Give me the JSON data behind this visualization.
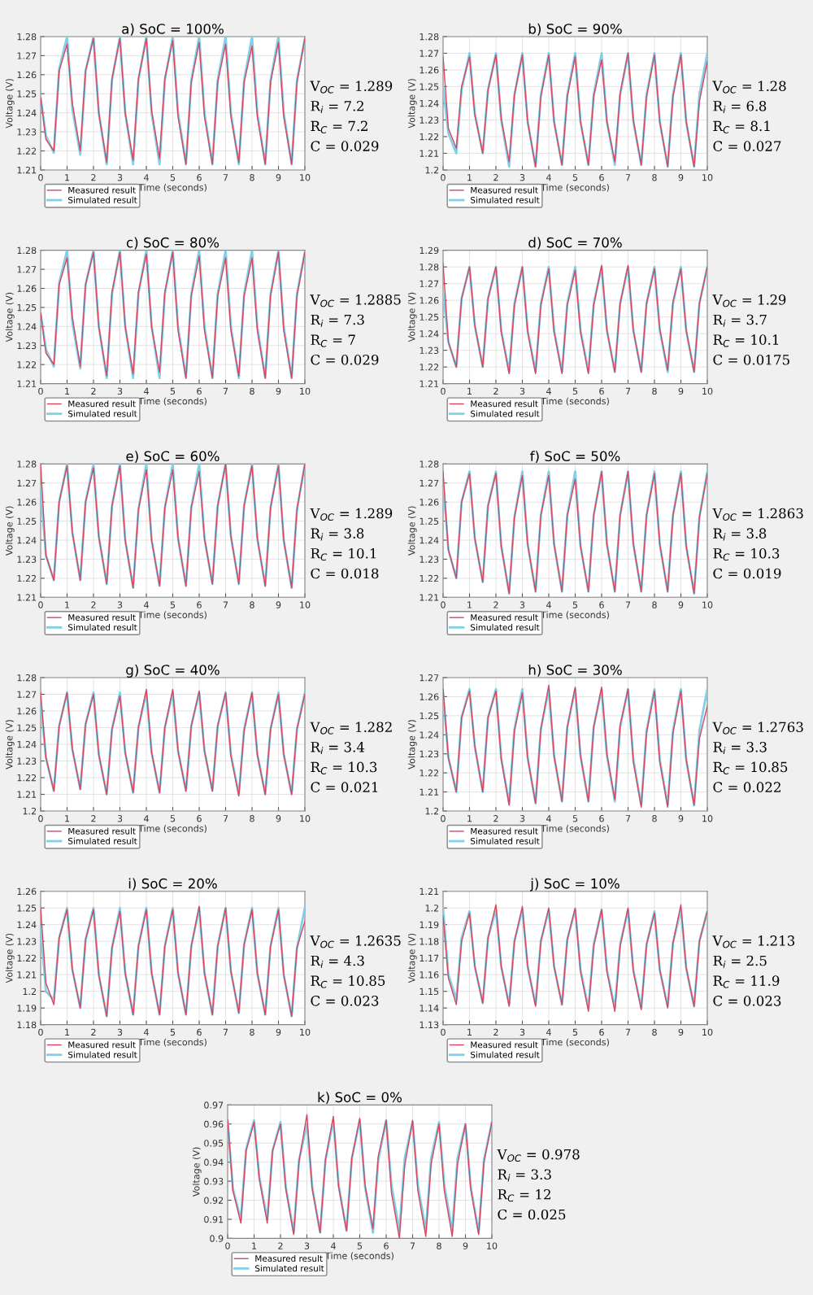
{
  "chart_data": [
    {
      "type": "line",
      "title": "a) SoC = 100%",
      "xlabel": "Time (seconds)",
      "ylabel": "Voltage (V)",
      "xlim": [
        0,
        10
      ],
      "xticks": [
        0,
        1,
        2,
        3,
        4,
        5,
        6,
        7,
        8,
        9,
        10
      ],
      "ylim": [
        1.21,
        1.28
      ],
      "yticks": [
        1.21,
        1.22,
        1.23,
        1.24,
        1.25,
        1.26,
        1.27,
        1.28
      ],
      "grid": true,
      "legend": "bottom left",
      "annotations": [
        "V$_{OC}$ = 1.289",
        "R$_{i}$ = 7.2",
        "R$_{C}$ = 7.2",
        "C = 0.029"
      ],
      "x": [
        0,
        0.2,
        0.5,
        0.7,
        1,
        1.2,
        1.5,
        1.7,
        2,
        2.2,
        2.5,
        2.7,
        3,
        3.2,
        3.5,
        3.7,
        4,
        4.2,
        4.5,
        4.7,
        5,
        5.2,
        5.5,
        5.7,
        6,
        6.2,
        6.5,
        6.7,
        7,
        7.2,
        7.5,
        7.7,
        8,
        8.2,
        8.5,
        8.7,
        9,
        9.2,
        9.5,
        9.7,
        10
      ],
      "series": [
        {
          "name": "Measured result",
          "color": "#d9455f",
          "values": [
            1.248,
            1.226,
            1.22,
            1.262,
            1.276,
            1.245,
            1.22,
            1.262,
            1.279,
            1.24,
            1.214,
            1.258,
            1.279,
            1.24,
            1.215,
            1.258,
            1.279,
            1.241,
            1.216,
            1.258,
            1.278,
            1.238,
            1.213,
            1.256,
            1.277,
            1.238,
            1.213,
            1.256,
            1.276,
            1.238,
            1.214,
            1.256,
            1.275,
            1.238,
            1.213,
            1.256,
            1.277,
            1.238,
            1.213,
            1.256,
            1.279
          ]
        },
        {
          "name": "Simulated result",
          "color": "#7fd0e8",
          "values": [
            1.248,
            1.228,
            1.219,
            1.263,
            1.28,
            1.242,
            1.218,
            1.262,
            1.28,
            1.24,
            1.213,
            1.257,
            1.28,
            1.24,
            1.213,
            1.257,
            1.28,
            1.24,
            1.213,
            1.257,
            1.28,
            1.24,
            1.213,
            1.257,
            1.28,
            1.24,
            1.213,
            1.257,
            1.28,
            1.24,
            1.213,
            1.257,
            1.28,
            1.24,
            1.213,
            1.257,
            1.28,
            1.24,
            1.213,
            1.257,
            1.279
          ]
        }
      ]
    },
    {
      "type": "line",
      "title": "b) SoC = 90%",
      "xlabel": "Time (seconds)",
      "ylabel": "Voltage (V)",
      "xlim": [
        0,
        10
      ],
      "xticks": [
        0,
        1,
        2,
        3,
        4,
        5,
        6,
        7,
        8,
        9,
        10
      ],
      "ylim": [
        1.2,
        1.28
      ],
      "yticks": [
        1.2,
        1.21,
        1.22,
        1.23,
        1.24,
        1.25,
        1.26,
        1.27,
        1.28
      ],
      "grid": true,
      "legend": "bottom left",
      "annotations": [
        "V$_{OC}$ = 1.28",
        "R$_{i}$ = 6.8",
        "R$_{C}$ = 8.1",
        "C = 0.027"
      ],
      "x": [
        0,
        0.2,
        0.5,
        0.7,
        1,
        1.2,
        1.5,
        1.7,
        2,
        2.2,
        2.5,
        2.7,
        3,
        3.2,
        3.5,
        3.7,
        4,
        4.2,
        4.5,
        4.7,
        5,
        5.2,
        5.5,
        5.7,
        6,
        6.2,
        6.5,
        6.7,
        7,
        7.2,
        7.5,
        7.7,
        8,
        8.2,
        8.5,
        8.7,
        9,
        9.2,
        9.5,
        9.7,
        10
      ],
      "series": [
        {
          "name": "Measured result",
          "color": "#d9455f",
          "values": [
            1.268,
            1.225,
            1.213,
            1.25,
            1.268,
            1.233,
            1.21,
            1.248,
            1.269,
            1.231,
            1.205,
            1.245,
            1.269,
            1.229,
            1.202,
            1.244,
            1.269,
            1.229,
            1.203,
            1.244,
            1.268,
            1.229,
            1.203,
            1.244,
            1.266,
            1.229,
            1.205,
            1.246,
            1.27,
            1.23,
            1.203,
            1.244,
            1.269,
            1.229,
            1.202,
            1.244,
            1.269,
            1.229,
            1.202,
            1.241,
            1.265
          ]
        },
        {
          "name": "Simulated result",
          "color": "#7fd0e8",
          "values": [
            1.25,
            1.222,
            1.21,
            1.248,
            1.27,
            1.234,
            1.21,
            1.248,
            1.27,
            1.23,
            1.202,
            1.245,
            1.27,
            1.229,
            1.202,
            1.245,
            1.27,
            1.229,
            1.203,
            1.245,
            1.27,
            1.229,
            1.203,
            1.245,
            1.27,
            1.229,
            1.203,
            1.245,
            1.27,
            1.229,
            1.203,
            1.245,
            1.27,
            1.229,
            1.202,
            1.245,
            1.27,
            1.229,
            1.202,
            1.245,
            1.27
          ]
        }
      ]
    },
    {
      "type": "line",
      "title": "c) SoC = 80%",
      "xlabel": "Time (seconds)",
      "ylabel": "Voltage (V)",
      "xlim": [
        0,
        10
      ],
      "xticks": [
        0,
        1,
        2,
        3,
        4,
        5,
        6,
        7,
        8,
        9,
        10
      ],
      "ylim": [
        1.21,
        1.28
      ],
      "yticks": [
        1.21,
        1.22,
        1.23,
        1.24,
        1.25,
        1.26,
        1.27,
        1.28
      ],
      "grid": true,
      "legend": "bottom left",
      "annotations": [
        "V$_{OC}$ = 1.2885",
        "R$_{i}$ = 7.3",
        "R$_{C}$ = 7",
        "C = 0.029"
      ],
      "x": [
        0,
        0.2,
        0.5,
        0.7,
        1,
        1.2,
        1.5,
        1.7,
        2,
        2.2,
        2.5,
        2.7,
        3,
        3.2,
        3.5,
        3.7,
        4,
        4.2,
        4.5,
        4.7,
        5,
        5.2,
        5.5,
        5.7,
        6,
        6.2,
        6.5,
        6.7,
        7,
        7.2,
        7.5,
        7.7,
        8,
        8.2,
        8.5,
        8.7,
        9,
        9.2,
        9.5,
        9.7,
        10
      ],
      "series": [
        {
          "name": "Measured result",
          "color": "#d9455f",
          "values": [
            1.247,
            1.226,
            1.22,
            1.262,
            1.276,
            1.245,
            1.219,
            1.262,
            1.279,
            1.24,
            1.214,
            1.258,
            1.279,
            1.24,
            1.215,
            1.258,
            1.278,
            1.24,
            1.216,
            1.258,
            1.279,
            1.238,
            1.213,
            1.256,
            1.277,
            1.238,
            1.213,
            1.256,
            1.276,
            1.238,
            1.214,
            1.256,
            1.276,
            1.238,
            1.213,
            1.256,
            1.279,
            1.238,
            1.213,
            1.256,
            1.279
          ]
        },
        {
          "name": "Simulated result",
          "color": "#7fd0e8",
          "values": [
            1.247,
            1.228,
            1.219,
            1.263,
            1.28,
            1.242,
            1.218,
            1.262,
            1.28,
            1.24,
            1.213,
            1.257,
            1.28,
            1.24,
            1.213,
            1.257,
            1.28,
            1.24,
            1.213,
            1.257,
            1.28,
            1.24,
            1.213,
            1.257,
            1.28,
            1.24,
            1.213,
            1.257,
            1.28,
            1.24,
            1.213,
            1.257,
            1.28,
            1.24,
            1.213,
            1.257,
            1.28,
            1.24,
            1.213,
            1.257,
            1.279
          ]
        }
      ]
    },
    {
      "type": "line",
      "title": "d) SoC = 70%",
      "xlabel": "Time (seconds)",
      "ylabel": "Voltage (V)",
      "xlim": [
        0,
        10
      ],
      "xticks": [
        0,
        1,
        2,
        3,
        4,
        5,
        6,
        7,
        8,
        9,
        10
      ],
      "ylim": [
        1.21,
        1.29
      ],
      "yticks": [
        1.21,
        1.22,
        1.23,
        1.24,
        1.25,
        1.26,
        1.27,
        1.28,
        1.29
      ],
      "grid": true,
      "legend": "bottom left",
      "annotations": [
        "V$_{OC}$ = 1.29",
        "R$_{i}$ = 3.7",
        "R$_{C}$ = 10.1",
        "C = 0.0175"
      ],
      "x": [
        0,
        0.2,
        0.5,
        0.7,
        1,
        1.2,
        1.5,
        1.7,
        2,
        2.2,
        2.5,
        2.7,
        3,
        3.2,
        3.5,
        3.7,
        4,
        4.2,
        4.5,
        4.7,
        5,
        5.2,
        5.5,
        5.7,
        6,
        6.2,
        6.5,
        6.7,
        7,
        7.2,
        7.5,
        7.7,
        8,
        8.2,
        8.5,
        8.7,
        9,
        9.2,
        9.5,
        9.7,
        10
      ],
      "series": [
        {
          "name": "Measured result",
          "color": "#d9455f",
          "values": [
            1.282,
            1.235,
            1.22,
            1.261,
            1.28,
            1.245,
            1.22,
            1.261,
            1.28,
            1.241,
            1.216,
            1.257,
            1.28,
            1.241,
            1.216,
            1.257,
            1.279,
            1.241,
            1.216,
            1.257,
            1.278,
            1.241,
            1.216,
            1.257,
            1.281,
            1.242,
            1.217,
            1.258,
            1.281,
            1.242,
            1.217,
            1.258,
            1.279,
            1.243,
            1.218,
            1.259,
            1.279,
            1.242,
            1.217,
            1.258,
            1.28
          ]
        },
        {
          "name": "Simulated result",
          "color": "#7fd0e8",
          "values": [
            1.265,
            1.235,
            1.22,
            1.261,
            1.28,
            1.245,
            1.22,
            1.261,
            1.28,
            1.242,
            1.217,
            1.258,
            1.28,
            1.242,
            1.217,
            1.258,
            1.28,
            1.242,
            1.217,
            1.258,
            1.28,
            1.242,
            1.217,
            1.258,
            1.28,
            1.242,
            1.217,
            1.258,
            1.28,
            1.242,
            1.217,
            1.258,
            1.28,
            1.242,
            1.217,
            1.258,
            1.28,
            1.242,
            1.217,
            1.258,
            1.28
          ]
        }
      ]
    },
    {
      "type": "line",
      "title": "e) SoC = 60%",
      "xlabel": "Time (seconds)",
      "ylabel": "Voltage (V)",
      "xlim": [
        0,
        10
      ],
      "xticks": [
        0,
        1,
        2,
        3,
        4,
        5,
        6,
        7,
        8,
        9,
        10
      ],
      "ylim": [
        1.21,
        1.28
      ],
      "yticks": [
        1.21,
        1.22,
        1.23,
        1.24,
        1.25,
        1.26,
        1.27,
        1.28
      ],
      "grid": true,
      "legend": "bottom left",
      "annotations": [
        "V$_{OC}$ = 1.289",
        "R$_{i}$ = 3.8",
        "R$_{C}$ = 10.1",
        "C = 0.018"
      ],
      "x": [
        0,
        0.2,
        0.5,
        0.7,
        1,
        1.2,
        1.5,
        1.7,
        2,
        2.2,
        2.5,
        2.7,
        3,
        3.2,
        3.5,
        3.7,
        4,
        4.2,
        4.5,
        4.7,
        5,
        5.2,
        5.5,
        5.7,
        6,
        6.2,
        6.5,
        6.7,
        7,
        7.2,
        7.5,
        7.7,
        8,
        8.2,
        8.5,
        8.7,
        9,
        9.2,
        9.5,
        9.7,
        10
      ],
      "series": [
        {
          "name": "Measured result",
          "color": "#d9455f",
          "values": [
            1.28,
            1.232,
            1.219,
            1.26,
            1.279,
            1.244,
            1.219,
            1.26,
            1.278,
            1.242,
            1.217,
            1.258,
            1.279,
            1.24,
            1.215,
            1.256,
            1.277,
            1.24,
            1.216,
            1.257,
            1.277,
            1.241,
            1.216,
            1.257,
            1.276,
            1.241,
            1.217,
            1.258,
            1.28,
            1.242,
            1.217,
            1.258,
            1.279,
            1.241,
            1.216,
            1.257,
            1.279,
            1.24,
            1.215,
            1.256,
            1.28
          ]
        },
        {
          "name": "Simulated result",
          "color": "#7fd0e8",
          "values": [
            1.266,
            1.232,
            1.219,
            1.26,
            1.28,
            1.244,
            1.219,
            1.26,
            1.28,
            1.242,
            1.217,
            1.258,
            1.28,
            1.24,
            1.215,
            1.256,
            1.28,
            1.24,
            1.216,
            1.257,
            1.28,
            1.241,
            1.216,
            1.257,
            1.28,
            1.241,
            1.217,
            1.258,
            1.28,
            1.242,
            1.217,
            1.258,
            1.28,
            1.241,
            1.216,
            1.257,
            1.28,
            1.24,
            1.215,
            1.256,
            1.28
          ]
        }
      ]
    },
    {
      "type": "line",
      "title": "f) SoC = 50%",
      "xlabel": "Time (seconds)",
      "ylabel": "Voltage (V)",
      "xlim": [
        0,
        10
      ],
      "xticks": [
        0,
        1,
        2,
        3,
        4,
        5,
        6,
        7,
        8,
        9,
        10
      ],
      "ylim": [
        1.21,
        1.28
      ],
      "yticks": [
        1.21,
        1.22,
        1.23,
        1.24,
        1.25,
        1.26,
        1.27,
        1.28
      ],
      "grid": true,
      "legend": "bottom left",
      "annotations": [
        "V$_{OC}$ = 1.2863",
        "R$_{i}$ = 3.8",
        "R$_{C}$ = 10.3",
        "C = 0.019"
      ],
      "x": [
        0,
        0.2,
        0.5,
        0.7,
        1,
        1.2,
        1.5,
        1.7,
        2,
        2.2,
        2.5,
        2.7,
        3,
        3.2,
        3.5,
        3.7,
        4,
        4.2,
        4.5,
        4.7,
        5,
        5.2,
        5.5,
        5.7,
        6,
        6.2,
        6.5,
        6.7,
        7,
        7.2,
        7.5,
        7.7,
        8,
        8.2,
        8.5,
        8.7,
        9,
        9.2,
        9.5,
        9.7,
        10
      ],
      "series": [
        {
          "name": "Measured result",
          "color": "#d9455f",
          "values": [
            1.276,
            1.235,
            1.22,
            1.26,
            1.275,
            1.241,
            1.218,
            1.258,
            1.275,
            1.237,
            1.212,
            1.252,
            1.274,
            1.238,
            1.213,
            1.253,
            1.274,
            1.238,
            1.213,
            1.253,
            1.272,
            1.237,
            1.213,
            1.253,
            1.276,
            1.238,
            1.213,
            1.253,
            1.276,
            1.238,
            1.213,
            1.253,
            1.275,
            1.238,
            1.213,
            1.253,
            1.275,
            1.237,
            1.212,
            1.252,
            1.275
          ]
        },
        {
          "name": "Simulated result",
          "color": "#7fd0e8",
          "values": [
            1.27,
            1.235,
            1.22,
            1.26,
            1.276,
            1.241,
            1.218,
            1.258,
            1.276,
            1.237,
            1.212,
            1.252,
            1.276,
            1.238,
            1.213,
            1.253,
            1.276,
            1.238,
            1.213,
            1.253,
            1.276,
            1.237,
            1.213,
            1.253,
            1.276,
            1.238,
            1.213,
            1.253,
            1.276,
            1.238,
            1.213,
            1.253,
            1.276,
            1.238,
            1.213,
            1.253,
            1.276,
            1.237,
            1.212,
            1.252,
            1.276
          ]
        }
      ]
    },
    {
      "type": "line",
      "title": "g) SoC = 40%",
      "xlabel": "Time (seconds)",
      "ylabel": "Voltage (V)",
      "xlim": [
        0,
        10
      ],
      "xticks": [
        0,
        1,
        2,
        3,
        4,
        5,
        6,
        7,
        8,
        9,
        10
      ],
      "ylim": [
        1.2,
        1.28
      ],
      "yticks": [
        1.2,
        1.21,
        1.22,
        1.23,
        1.24,
        1.25,
        1.26,
        1.27,
        1.28
      ],
      "grid": true,
      "legend": "bottom left",
      "annotations": [
        "V$_{OC}$ = 1.282",
        "R$_{i}$ = 3.4",
        "R$_{C}$ = 10.3",
        "C = 0.021"
      ],
      "x": [
        0,
        0.2,
        0.5,
        0.7,
        1,
        1.2,
        1.5,
        1.7,
        2,
        2.2,
        2.5,
        2.7,
        3,
        3.2,
        3.5,
        3.7,
        4,
        4.2,
        4.5,
        4.7,
        5,
        5.2,
        5.5,
        5.7,
        6,
        6.2,
        6.5,
        6.7,
        7,
        7.2,
        7.5,
        7.7,
        8,
        8.2,
        8.5,
        8.7,
        9,
        9.2,
        9.5,
        9.7,
        10
      ],
      "series": [
        {
          "name": "Measured result",
          "color": "#d9455f",
          "values": [
            1.271,
            1.232,
            1.212,
            1.251,
            1.271,
            1.237,
            1.213,
            1.252,
            1.27,
            1.234,
            1.21,
            1.249,
            1.269,
            1.235,
            1.211,
            1.25,
            1.273,
            1.235,
            1.211,
            1.25,
            1.273,
            1.236,
            1.212,
            1.251,
            1.272,
            1.236,
            1.212,
            1.251,
            1.271,
            1.233,
            1.209,
            1.248,
            1.271,
            1.234,
            1.21,
            1.249,
            1.27,
            1.234,
            1.21,
            1.249,
            1.27
          ]
        },
        {
          "name": "Simulated result",
          "color": "#7fd0e8",
          "values": [
            1.265,
            1.232,
            1.212,
            1.251,
            1.271,
            1.237,
            1.213,
            1.252,
            1.271,
            1.234,
            1.21,
            1.249,
            1.271,
            1.235,
            1.211,
            1.25,
            1.271,
            1.235,
            1.211,
            1.25,
            1.271,
            1.236,
            1.212,
            1.251,
            1.271,
            1.236,
            1.212,
            1.251,
            1.271,
            1.234,
            1.21,
            1.249,
            1.271,
            1.234,
            1.21,
            1.249,
            1.271,
            1.234,
            1.21,
            1.249,
            1.271
          ]
        }
      ]
    },
    {
      "type": "line",
      "title": "h) SoC = 30%",
      "xlabel": "Time (seconds)",
      "ylabel": "Voltage (V)",
      "xlim": [
        0,
        10
      ],
      "xticks": [
        0,
        1,
        2,
        3,
        4,
        5,
        6,
        7,
        8,
        9,
        10
      ],
      "ylim": [
        1.2,
        1.27
      ],
      "yticks": [
        1.2,
        1.21,
        1.22,
        1.23,
        1.24,
        1.25,
        1.26,
        1.27
      ],
      "grid": true,
      "legend": "bottom left",
      "annotations": [
        "V$_{OC}$ = 1.2763",
        "R$_{i}$ = 3.3",
        "R$_{C}$ = 10.85",
        "C = 0.022"
      ],
      "x": [
        0,
        0.2,
        0.5,
        0.7,
        1,
        1.2,
        1.5,
        1.7,
        2,
        2.2,
        2.5,
        2.7,
        3,
        3.2,
        3.5,
        3.7,
        4,
        4.2,
        4.5,
        4.7,
        5,
        5.2,
        5.5,
        5.7,
        6,
        6.2,
        6.5,
        6.7,
        7,
        7.2,
        7.5,
        7.7,
        8,
        8.2,
        8.5,
        8.7,
        9,
        9.2,
        9.5,
        9.7,
        10
      ],
      "series": [
        {
          "name": "Measured result",
          "color": "#d9455f",
          "values": [
            1.264,
            1.228,
            1.21,
            1.249,
            1.263,
            1.234,
            1.21,
            1.249,
            1.263,
            1.227,
            1.203,
            1.242,
            1.262,
            1.228,
            1.204,
            1.243,
            1.266,
            1.229,
            1.205,
            1.244,
            1.265,
            1.229,
            1.205,
            1.244,
            1.265,
            1.23,
            1.206,
            1.245,
            1.264,
            1.226,
            1.202,
            1.241,
            1.263,
            1.226,
            1.202,
            1.241,
            1.263,
            1.227,
            1.203,
            1.238,
            1.255
          ]
        },
        {
          "name": "Simulated result",
          "color": "#7fd0e8",
          "values": [
            1.262,
            1.228,
            1.21,
            1.249,
            1.264,
            1.234,
            1.21,
            1.249,
            1.264,
            1.228,
            1.204,
            1.243,
            1.264,
            1.228,
            1.204,
            1.243,
            1.264,
            1.229,
            1.205,
            1.244,
            1.264,
            1.229,
            1.205,
            1.244,
            1.264,
            1.229,
            1.205,
            1.244,
            1.264,
            1.227,
            1.203,
            1.242,
            1.264,
            1.227,
            1.203,
            1.242,
            1.264,
            1.227,
            1.203,
            1.242,
            1.264
          ]
        }
      ]
    },
    {
      "type": "line",
      "title": "i) SoC = 20%",
      "xlabel": "Time (seconds)",
      "ylabel": "Voltage (V)",
      "xlim": [
        0,
        10
      ],
      "xticks": [
        0,
        1,
        2,
        3,
        4,
        5,
        6,
        7,
        8,
        9,
        10
      ],
      "ylim": [
        1.18,
        1.26
      ],
      "yticks": [
        1.18,
        1.19,
        1.2,
        1.21,
        1.22,
        1.23,
        1.24,
        1.25,
        1.26
      ],
      "grid": true,
      "legend": "bottom left",
      "annotations": [
        "V$_{OC}$ = 1.2635",
        "R$_{i}$ = 4.3",
        "R$_{C}$ = 10.85",
        "C = 0.023"
      ],
      "x": [
        0,
        0.2,
        0.5,
        0.7,
        1,
        1.2,
        1.5,
        1.7,
        2,
        2.2,
        2.5,
        2.7,
        3,
        3.2,
        3.5,
        3.7,
        4,
        4.2,
        4.5,
        4.7,
        5,
        5.2,
        5.5,
        5.7,
        6,
        6.2,
        6.5,
        6.7,
        7,
        7.2,
        7.5,
        7.7,
        8,
        8.2,
        8.5,
        8.7,
        9,
        9.2,
        9.5,
        9.7,
        10
      ],
      "series": [
        {
          "name": "Measured result",
          "color": "#d9455f",
          "values": [
            1.25,
            1.205,
            1.192,
            1.232,
            1.249,
            1.213,
            1.19,
            1.231,
            1.249,
            1.21,
            1.185,
            1.226,
            1.248,
            1.211,
            1.186,
            1.227,
            1.249,
            1.211,
            1.186,
            1.227,
            1.249,
            1.211,
            1.186,
            1.227,
            1.251,
            1.211,
            1.186,
            1.227,
            1.25,
            1.212,
            1.187,
            1.228,
            1.249,
            1.211,
            1.186,
            1.227,
            1.249,
            1.21,
            1.185,
            1.226,
            1.242
          ]
        },
        {
          "name": "Simulated result",
          "color": "#7fd0e8",
          "values": [
            1.238,
            1.2,
            1.195,
            1.232,
            1.25,
            1.213,
            1.19,
            1.231,
            1.25,
            1.21,
            1.185,
            1.226,
            1.25,
            1.211,
            1.186,
            1.227,
            1.25,
            1.211,
            1.186,
            1.227,
            1.25,
            1.211,
            1.186,
            1.227,
            1.25,
            1.211,
            1.186,
            1.227,
            1.25,
            1.212,
            1.187,
            1.228,
            1.25,
            1.211,
            1.186,
            1.227,
            1.25,
            1.21,
            1.185,
            1.226,
            1.25
          ]
        }
      ]
    },
    {
      "type": "line",
      "title": "j) SoC = 10%",
      "xlabel": "Time (seconds)",
      "ylabel": "Voltage (V)",
      "xlim": [
        0,
        10
      ],
      "xticks": [
        0,
        1,
        2,
        3,
        4,
        5,
        6,
        7,
        8,
        9,
        10
      ],
      "ylim": [
        1.13,
        1.21
      ],
      "yticks": [
        1.13,
        1.14,
        1.15,
        1.16,
        1.17,
        1.18,
        1.19,
        1.2,
        1.21
      ],
      "grid": true,
      "legend": "bottom left",
      "annotations": [
        "V$_{OC}$ = 1.213",
        "R$_{i}$ = 2.5",
        "R$_{C}$ = 11.9",
        "C = 0.023"
      ],
      "x": [
        0,
        0.2,
        0.5,
        0.7,
        1,
        1.2,
        1.5,
        1.7,
        2,
        2.2,
        2.5,
        2.7,
        3,
        3.2,
        3.5,
        3.7,
        4,
        4.2,
        4.5,
        4.7,
        5,
        5.2,
        5.5,
        5.7,
        6,
        6.2,
        6.5,
        6.7,
        7,
        7.2,
        7.5,
        7.7,
        8,
        8.2,
        8.5,
        8.7,
        9,
        9.2,
        9.5,
        9.7,
        10
      ],
      "series": [
        {
          "name": "Measured result",
          "color": "#d9455f",
          "values": [
            1.195,
            1.158,
            1.142,
            1.18,
            1.197,
            1.165,
            1.143,
            1.182,
            1.202,
            1.165,
            1.141,
            1.18,
            1.201,
            1.165,
            1.141,
            1.18,
            1.2,
            1.165,
            1.142,
            1.181,
            1.2,
            1.162,
            1.138,
            1.177,
            1.199,
            1.162,
            1.138,
            1.177,
            1.2,
            1.162,
            1.139,
            1.178,
            1.197,
            1.163,
            1.14,
            1.179,
            1.202,
            1.164,
            1.141,
            1.18,
            1.198
          ]
        },
        {
          "name": "Simulated result",
          "color": "#7fd0e8",
          "values": [
            1.2,
            1.16,
            1.145,
            1.182,
            1.198,
            1.165,
            1.143,
            1.182,
            1.199,
            1.165,
            1.142,
            1.18,
            1.199,
            1.165,
            1.142,
            1.18,
            1.199,
            1.165,
            1.142,
            1.181,
            1.199,
            1.163,
            1.14,
            1.178,
            1.199,
            1.163,
            1.14,
            1.178,
            1.199,
            1.163,
            1.14,
            1.178,
            1.198,
            1.163,
            1.141,
            1.179,
            1.199,
            1.164,
            1.141,
            1.18,
            1.198
          ]
        }
      ]
    },
    {
      "type": "line",
      "title": "k) SoC = 0%",
      "xlabel": "Time (seconds)",
      "ylabel": "Voltage (V)",
      "xlim": [
        0,
        10
      ],
      "xticks": [
        0,
        1,
        2,
        3,
        4,
        5,
        6,
        7,
        8,
        9,
        10
      ],
      "ylim": [
        0.9,
        0.97
      ],
      "yticks": [
        0.9,
        0.91,
        0.92,
        0.93,
        0.94,
        0.95,
        0.96,
        0.97
      ],
      "grid": true,
      "legend": "bottom left",
      "annotations": [
        "V$_{OC}$ = 0.978",
        "R$_{i}$ = 3.3",
        "R$_{C}$ = 12",
        "C = 0.025"
      ],
      "x": [
        0,
        0.2,
        0.5,
        0.7,
        1,
        1.2,
        1.5,
        1.7,
        2,
        2.2,
        2.5,
        2.7,
        3,
        3.2,
        3.5,
        3.7,
        4,
        4.2,
        4.5,
        4.7,
        5,
        5.2,
        5.5,
        5.7,
        6,
        6.2,
        6.5,
        6.7,
        7,
        7.2,
        7.5,
        7.7,
        8,
        8.2,
        8.5,
        8.7,
        9,
        9.2,
        9.5,
        9.7,
        10
      ],
      "series": [
        {
          "name": "Measured result",
          "color": "#d9455f",
          "values": [
            0.962,
            0.925,
            0.908,
            0.946,
            0.961,
            0.931,
            0.908,
            0.946,
            0.96,
            0.926,
            0.902,
            0.94,
            0.965,
            0.926,
            0.903,
            0.941,
            0.964,
            0.927,
            0.904,
            0.942,
            0.963,
            0.928,
            0.905,
            0.943,
            0.962,
            0.924,
            0.9,
            0.938,
            0.962,
            0.925,
            0.901,
            0.939,
            0.96,
            0.925,
            0.901,
            0.939,
            0.96,
            0.926,
            0.902,
            0.94,
            0.961
          ]
        },
        {
          "name": "Simulated result",
          "color": "#7fd0e8",
          "values": [
            0.962,
            0.926,
            0.91,
            0.947,
            0.962,
            0.932,
            0.91,
            0.946,
            0.961,
            0.927,
            0.903,
            0.941,
            0.96,
            0.927,
            0.903,
            0.941,
            0.962,
            0.928,
            0.904,
            0.942,
            0.962,
            0.927,
            0.903,
            0.941,
            0.962,
            0.928,
            0.904,
            0.942,
            0.961,
            0.928,
            0.904,
            0.942,
            0.961,
            0.928,
            0.904,
            0.942,
            0.96,
            0.927,
            0.903,
            0.941,
            0.961
          ]
        }
      ]
    }
  ]
}
